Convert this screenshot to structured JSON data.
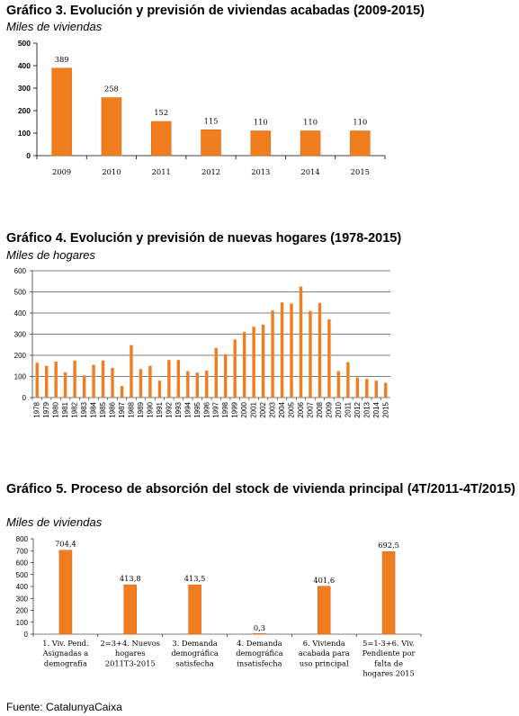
{
  "colors": {
    "bar": "#f07d1e",
    "bar_edge": "#d9621a",
    "axis": "#000000",
    "grid": "#000000"
  },
  "source": "Fuente: CatalunyaCaixa",
  "chart_data": [
    {
      "type": "bar",
      "title": "Gráfico 3. Evolución y previsión de viviendas acabadas (2009-2015)",
      "ylabel": "Miles de viviendas",
      "categories": [
        "2009",
        "2010",
        "2011",
        "2012",
        "2013",
        "2014",
        "2015"
      ],
      "values": [
        389,
        258,
        152,
        115,
        110,
        110,
        110
      ],
      "value_labels": [
        "389",
        "258",
        "152",
        "115",
        "110",
        "110",
        "110"
      ],
      "ylim": [
        0,
        500
      ],
      "yticks": [
        "0",
        "100",
        "200",
        "300",
        "400",
        "500"
      ],
      "grid": false
    },
    {
      "type": "bar",
      "title": "Gráfico 4. Evolución y previsión de nuevas hogares (1978-2015)",
      "ylabel": "Miles de hogares",
      "categories": [
        "1978",
        "1979",
        "1980",
        "1981",
        "1982",
        "1983",
        "1984",
        "1985",
        "1986",
        "1987",
        "1988",
        "1989",
        "1990",
        "1991",
        "1992",
        "1993",
        "1994",
        "1995",
        "1996",
        "1997",
        "1998",
        "1999",
        "2000",
        "2001",
        "2002",
        "2003",
        "2004",
        "2005",
        "2006",
        "2007",
        "2008",
        "2009",
        "2010",
        "2011",
        "2012",
        "2013",
        "2014",
        "2015"
      ],
      "values": [
        165,
        150,
        170,
        120,
        175,
        105,
        155,
        175,
        140,
        55,
        248,
        135,
        150,
        80,
        178,
        178,
        125,
        118,
        128,
        235,
        205,
        275,
        310,
        335,
        345,
        412,
        450,
        445,
        525,
        410,
        448,
        370,
        125,
        168,
        95,
        88,
        80,
        70
      ],
      "ylim": [
        0,
        600
      ],
      "yticks": [
        "0",
        "100",
        "200",
        "300",
        "400",
        "500",
        "600"
      ],
      "grid": true
    },
    {
      "type": "bar",
      "title": "Gráfico 5. Proceso de absorción del stock de vivienda principal (4T/2011-4T/2015)",
      "ylabel": "Miles de viviendas",
      "categories": [
        [
          "1. Viv. Pend.",
          "Asignadas a",
          "demografía"
        ],
        [
          "2=3+4. Nuevos",
          "hogares",
          "2011T3-2015"
        ],
        [
          "3. Demanda",
          "demográfica",
          "satisfecha"
        ],
        [
          "4. Demanda",
          "demográfica",
          "insatisfecha"
        ],
        [
          "6. Vivienda",
          "acabada para",
          "uso principal"
        ],
        [
          "5=1-3+6. Viv.",
          "Pendiente por",
          "falta de",
          "hogares 2015"
        ]
      ],
      "values": [
        704.4,
        413.8,
        413.5,
        0.3,
        401.6,
        692.5
      ],
      "value_labels": [
        "704,4",
        "413,8",
        "413,5",
        "0,3",
        "401,6",
        "692,5"
      ],
      "ylim": [
        0,
        800
      ],
      "yticks": [
        "0",
        "100",
        "200",
        "300",
        "400",
        "500",
        "600",
        "700",
        "800"
      ],
      "grid": false
    }
  ]
}
